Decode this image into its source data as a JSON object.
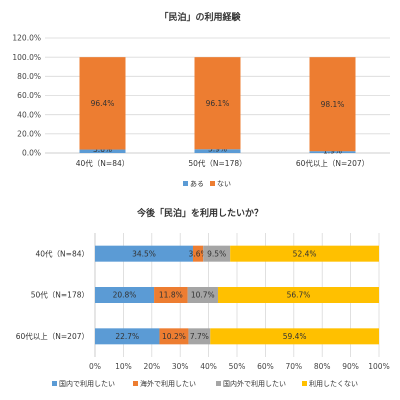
{
  "colors": {
    "blue": "#5b9bd5",
    "orange": "#ed7d31",
    "gray": "#a5a5a5",
    "yellow": "#ffc000",
    "grid": "#d9d9d9",
    "axis": "#bfbfbf"
  },
  "chart_data": [
    {
      "type": "bar",
      "stacked": true,
      "orientation": "vertical",
      "title": "「民泊」の利用経験",
      "categories": [
        "40代（N=84）",
        "50代（N=178）",
        "60代以上（N=207）"
      ],
      "series": [
        {
          "name": "ある",
          "values": [
            3.6,
            3.9,
            1.9
          ],
          "labels": [
            "3.6%",
            "3.9%",
            "1.9%"
          ],
          "color": "blue"
        },
        {
          "name": "ない",
          "values": [
            96.4,
            96.1,
            98.1
          ],
          "labels": [
            "96.4%",
            "96.1%",
            "98.1%"
          ],
          "color": "orange"
        }
      ],
      "ylim": [
        0,
        120
      ],
      "yticks": [
        0,
        20,
        40,
        60,
        80,
        100,
        120
      ],
      "ytick_labels": [
        "0.0%",
        "20.0%",
        "40.0%",
        "60.0%",
        "80.0%",
        "100.0%",
        "120.0%"
      ],
      "grid": true,
      "legend": "bottom"
    },
    {
      "type": "bar",
      "stacked": true,
      "orientation": "horizontal",
      "title": "今後「民泊」を利用したいか？",
      "categories": [
        "40代（N=84）",
        "50代（N=178）",
        "60代以上（N=207）"
      ],
      "series": [
        {
          "name": "国内で利用したい",
          "values": [
            34.5,
            20.8,
            22.7
          ],
          "labels": [
            "34.5%",
            "20.8%",
            "22.7%"
          ],
          "color": "blue"
        },
        {
          "name": "海外で利用したい",
          "values": [
            3.6,
            11.8,
            10.2
          ],
          "labels": [
            "3.6%",
            "11.8%",
            "10.2%"
          ],
          "color": "orange"
        },
        {
          "name": "国内外で利用したい",
          "values": [
            9.5,
            10.7,
            7.7
          ],
          "labels": [
            "9.5%",
            "10.7%",
            "7.7%"
          ],
          "color": "gray"
        },
        {
          "name": "利用したくない",
          "values": [
            52.4,
            56.7,
            59.4
          ],
          "labels": [
            "52.4%",
            "56.7%",
            "59.4%"
          ],
          "color": "yellow"
        }
      ],
      "xlim": [
        0,
        100
      ],
      "xticks": [
        0,
        10,
        20,
        30,
        40,
        50,
        60,
        70,
        80,
        90,
        100
      ],
      "xtick_labels": [
        "0%",
        "10%",
        "20%",
        "30%",
        "40%",
        "50%",
        "60%",
        "70%",
        "80%",
        "90%",
        "100%"
      ],
      "grid": true,
      "legend": "bottom"
    }
  ]
}
